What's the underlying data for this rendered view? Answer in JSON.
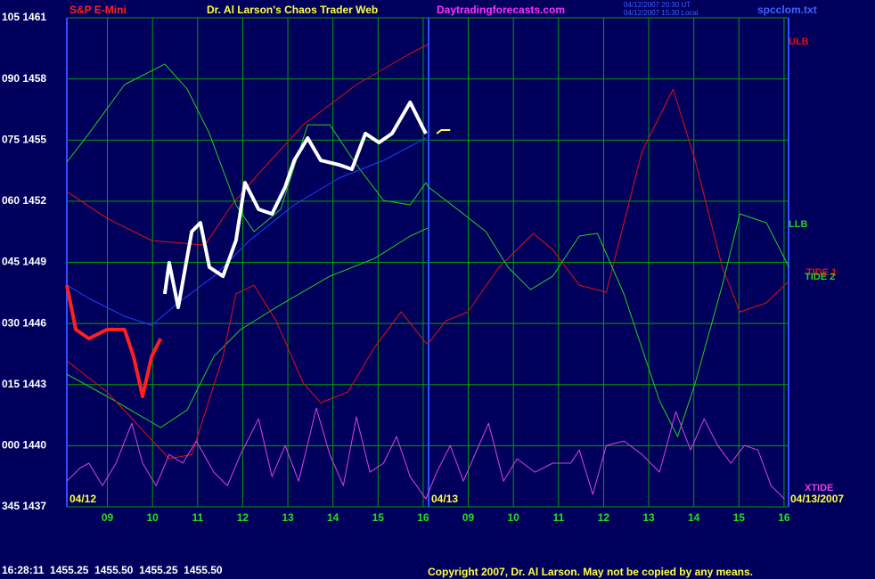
{
  "chart_data": {
    "type": "line",
    "instrument": "S&P E-Mini",
    "title": "Dr. Al Larson's Chaos Trader Web",
    "website": "Daytradingforecasts.com",
    "timestamps": [
      "04/12/2007 20:30 UT",
      "04/12/2007 15:30 Local"
    ],
    "filename": "spcclom.txt",
    "date_labels": [
      "04/12",
      "04/13",
      "04/13/2007"
    ],
    "quote": "16:28:11  1455.25  1455.50  1455.25  1455.50",
    "copyright": "Copyright 2007, Dr. Al Larson. May not be copied by any means.",
    "xlim": [
      8.1,
      24.1
    ],
    "xticks": [
      {
        "value": 9,
        "label": "09"
      },
      10,
      11,
      12,
      13,
      14,
      15,
      16,
      {
        "value": 17,
        "label": "09"
      },
      {
        "value": 18,
        "label": "10"
      },
      {
        "value": 19,
        "label": "11"
      },
      {
        "value": 20,
        "label": "12"
      },
      {
        "value": 21,
        "label": "13"
      },
      {
        "value": 22,
        "label": "14"
      },
      {
        "value": 23,
        "label": "15"
      },
      {
        "value": 24,
        "label": "16"
      }
    ],
    "day_divider": 16.12,
    "ylim": [
      1437,
      1461
    ],
    "yticks": [
      {
        "value": 1437,
        "label": "345 1437"
      },
      {
        "value": 1440,
        "label": "000 1440"
      },
      {
        "value": 1443,
        "label": "015 1443"
      },
      {
        "value": 1446,
        "label": "030 1446"
      },
      {
        "value": 1449,
        "label": "045 1449"
      },
      {
        "value": 1452,
        "label": "060 1452"
      },
      {
        "value": 1455,
        "label": "075 1455"
      },
      {
        "value": 1458,
        "label": "090 1458"
      },
      {
        "value": 1461,
        "label": "105 1461"
      }
    ],
    "grid": true,
    "series": [
      {
        "name": "ULB",
        "color": "#e01010",
        "x": [
          8.1,
          8.99,
          9.98,
          11.16,
          11.76,
          12.35,
          13.34,
          14.52,
          15.71,
          16.1
        ],
        "values": [
          1452.47,
          1451.16,
          1450.07,
          1449.85,
          1451.82,
          1453.35,
          1455.75,
          1457.72,
          1459.25,
          1459.69
        ]
      },
      {
        "name": "LLB",
        "color": "#20d020",
        "x": [
          8.1,
          8.99,
          10.18,
          10.77,
          11.36,
          11.95,
          12.74,
          13.93,
          14.92,
          15.71,
          16.1
        ],
        "values": [
          1443.51,
          1442.42,
          1440.89,
          1441.76,
          1444.38,
          1445.7,
          1446.79,
          1448.32,
          1449.19,
          1450.29,
          1450.68
        ]
      },
      {
        "name": "TIDE 1",
        "color": "#e01010",
        "x": [
          8.1,
          8.99,
          10.37,
          10.87,
          11.56,
          11.85,
          12.25,
          12.74,
          13.34,
          13.73,
          14.33,
          14.92,
          15.51,
          16.06,
          16.12,
          16.5,
          16.99,
          17.68,
          18.44,
          18.87,
          19.46,
          20.06,
          20.45,
          20.85,
          21.54,
          22.03,
          22.63,
          23.02,
          23.61,
          24.11
        ],
        "values": [
          1444.17,
          1442.64,
          1439.36,
          1439.57,
          1444.38,
          1447.45,
          1447.88,
          1446.13,
          1443.07,
          1442.11,
          1442.64,
          1444.82,
          1446.57,
          1445.04,
          1445.04,
          1446.13,
          1446.57,
          1448.76,
          1450.42,
          1449.63,
          1447.88,
          1447.53,
          1450.94,
          1454.44,
          1457.5,
          1454.0,
          1448.76,
          1446.57,
          1447.01,
          1448.1
        ]
      },
      {
        "name": "TIDE 2",
        "color": "#20d020",
        "x": [
          8.1,
          8.59,
          9.38,
          10.27,
          10.77,
          11.26,
          11.85,
          12.25,
          12.84,
          13.44,
          13.93,
          14.52,
          15.12,
          15.71,
          16.06,
          16.12,
          16.89,
          17.39,
          17.88,
          18.38,
          18.87,
          19.46,
          19.86,
          20.45,
          21.24,
          21.64,
          22.03,
          22.63,
          23.02,
          23.61,
          24.11
        ],
        "values": [
          1453.92,
          1455.32,
          1457.72,
          1458.73,
          1457.5,
          1455.32,
          1451.82,
          1450.51,
          1451.6,
          1455.75,
          1455.75,
          1453.79,
          1452.04,
          1451.82,
          1452.91,
          1452.69,
          1451.38,
          1450.51,
          1448.76,
          1447.66,
          1448.32,
          1450.29,
          1450.42,
          1447.45,
          1442.2,
          1440.45,
          1443.07,
          1447.88,
          1451.38,
          1450.94,
          1448.76
        ]
      },
      {
        "name": "XTIDE",
        "color": "#e040e0",
        "x": [
          8.1,
          8.4,
          8.59,
          8.89,
          9.19,
          9.54,
          9.78,
          10.08,
          10.37,
          10.67,
          10.97,
          11.36,
          11.66,
          11.95,
          12.35,
          12.65,
          12.94,
          13.24,
          13.63,
          13.93,
          14.23,
          14.52,
          14.82,
          15.12,
          15.41,
          15.71,
          16.06,
          16.3,
          16.6,
          16.89,
          17.45,
          17.78,
          18.08,
          18.48,
          18.87,
          19.27,
          19.46,
          19.76,
          20.06,
          20.45,
          20.85,
          21.24,
          21.6,
          21.93,
          22.23,
          22.53,
          22.82,
          23.12,
          23.42,
          23.71,
          24.01
        ],
        "values": [
          1438.26,
          1438.92,
          1439.14,
          1438.04,
          1439.14,
          1441.1,
          1439.14,
          1438.04,
          1439.57,
          1439.14,
          1440.23,
          1438.7,
          1438.04,
          1439.57,
          1441.32,
          1438.48,
          1440.01,
          1438.26,
          1441.85,
          1439.57,
          1438.04,
          1441.41,
          1438.7,
          1439.14,
          1440.45,
          1438.48,
          1437.39,
          1438.7,
          1440.01,
          1438.26,
          1441.1,
          1438.26,
          1439.36,
          1438.7,
          1439.14,
          1439.14,
          1439.79,
          1437.61,
          1440.01,
          1440.23,
          1439.57,
          1438.7,
          1441.67,
          1439.79,
          1441.32,
          1440.01,
          1439.14,
          1440.01,
          1439.79,
          1438.04,
          1437.39
        ]
      },
      {
        "color": "#2040ff",
        "x": [
          8.1,
          8.59,
          9.38,
          9.98,
          10.57,
          11.36,
          12.15,
          13.14,
          14.13,
          15.12,
          16.06
        ],
        "values": [
          1447.88,
          1447.23,
          1446.35,
          1445.91,
          1447.01,
          1448.32,
          1450.07,
          1451.82,
          1453.13,
          1454.0,
          1455.1
        ]
      },
      {
        "color": "#ff2020",
        "width": 4,
        "x": [
          8.1,
          8.3,
          8.59,
          8.99,
          9.38,
          9.58,
          9.78,
          9.98,
          10.18
        ],
        "values": [
          1447.88,
          1445.7,
          1445.26,
          1445.7,
          1445.7,
          1444.38,
          1442.42,
          1444.38,
          1445.26
        ]
      },
      {
        "color": "#ffffff",
        "width": 4,
        "x": [
          10.27,
          10.37,
          10.57,
          10.87,
          11.06,
          11.26,
          11.56,
          11.85,
          12.05,
          12.35,
          12.65,
          12.94,
          13.14,
          13.44,
          13.73,
          14.13,
          14.42,
          14.72,
          15.02,
          15.31,
          15.71,
          16.01,
          16.06
        ],
        "values": [
          1447.45,
          1448.98,
          1446.79,
          1450.51,
          1450.94,
          1448.76,
          1448.32,
          1450.07,
          1452.91,
          1451.6,
          1451.38,
          1452.69,
          1454.0,
          1455.1,
          1454.0,
          1453.79,
          1453.57,
          1455.32,
          1454.88,
          1455.32,
          1456.85,
          1455.53,
          1455.32
        ]
      },
      {
        "color": "#ffff40",
        "width": 2,
        "x": [
          16.3,
          16.4,
          16.6
        ],
        "values": [
          1455.32,
          1455.49,
          1455.49
        ]
      }
    ]
  }
}
